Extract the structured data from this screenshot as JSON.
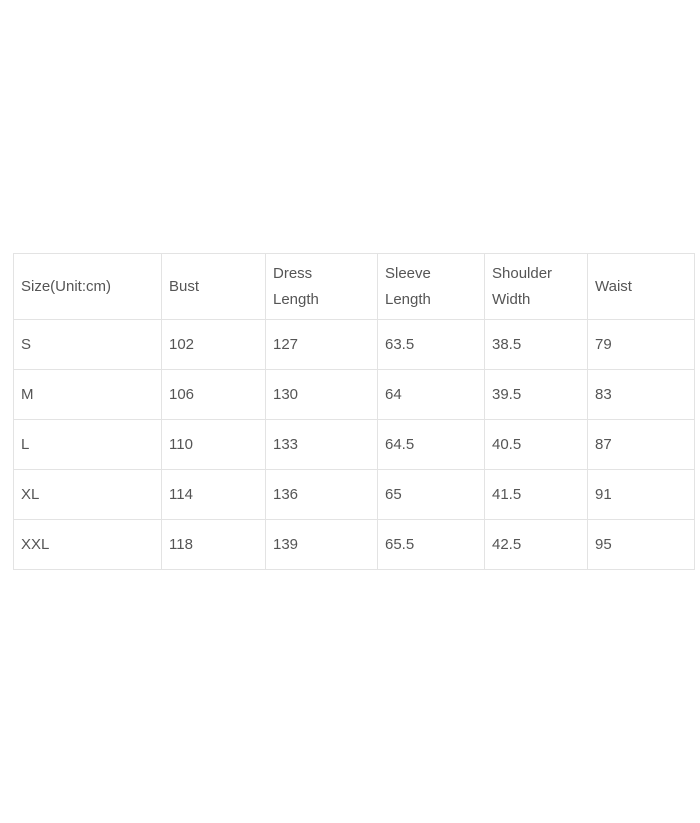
{
  "size_table": {
    "headers": [
      [
        "Size(Unit:cm)"
      ],
      [
        "Bust"
      ],
      [
        "Dress",
        "Length"
      ],
      [
        "Sleeve",
        "Length"
      ],
      [
        "Shoulder",
        "Width"
      ],
      [
        "Waist"
      ]
    ],
    "rows": [
      [
        "S",
        "102",
        "127",
        "63.5",
        "38.5",
        "79"
      ],
      [
        "M",
        "106",
        "130",
        "64",
        "39.5",
        "83"
      ],
      [
        "L",
        "110",
        "133",
        "64.5",
        "40.5",
        "87"
      ],
      [
        "XL",
        "114",
        "136",
        "65",
        "41.5",
        "91"
      ],
      [
        "XXL",
        "118",
        "139",
        "65.5",
        "42.5",
        "95"
      ]
    ]
  }
}
